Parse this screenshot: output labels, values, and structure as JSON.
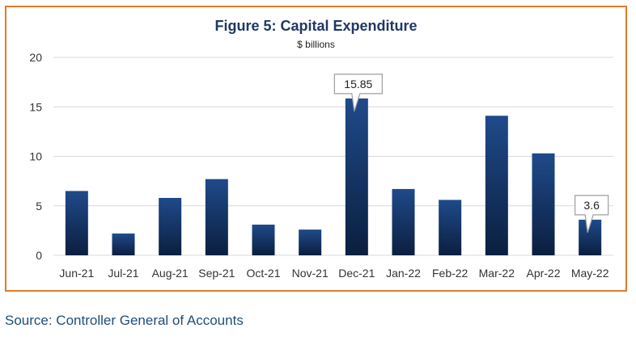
{
  "chart_data": {
    "type": "bar",
    "title": "Figure 5: Capital Expenditure",
    "subtitle": "$ billions",
    "categories": [
      "Jun-21",
      "Jul-21",
      "Aug-21",
      "Sep-21",
      "Oct-21",
      "Nov-21",
      "Dec-21",
      "Jan-22",
      "Feb-22",
      "Mar-22",
      "Apr-22",
      "May-22"
    ],
    "values": [
      6.5,
      2.2,
      5.8,
      7.7,
      3.1,
      2.6,
      15.85,
      6.7,
      5.6,
      14.1,
      10.3,
      3.6
    ],
    "yticks": [
      0,
      5,
      10,
      15,
      20
    ],
    "ylim": [
      0,
      20
    ],
    "grid": true,
    "annotations": [
      {
        "category": "Dec-21",
        "label": "15.85"
      },
      {
        "category": "May-22",
        "label": "3.6"
      }
    ],
    "colors": {
      "bar_top": "#1F4A8A",
      "bar_bottom": "#0B1F3F",
      "grid": "#D9D9D9",
      "border": "#E07B2A"
    }
  },
  "source": "Source: Controller General of Accounts"
}
